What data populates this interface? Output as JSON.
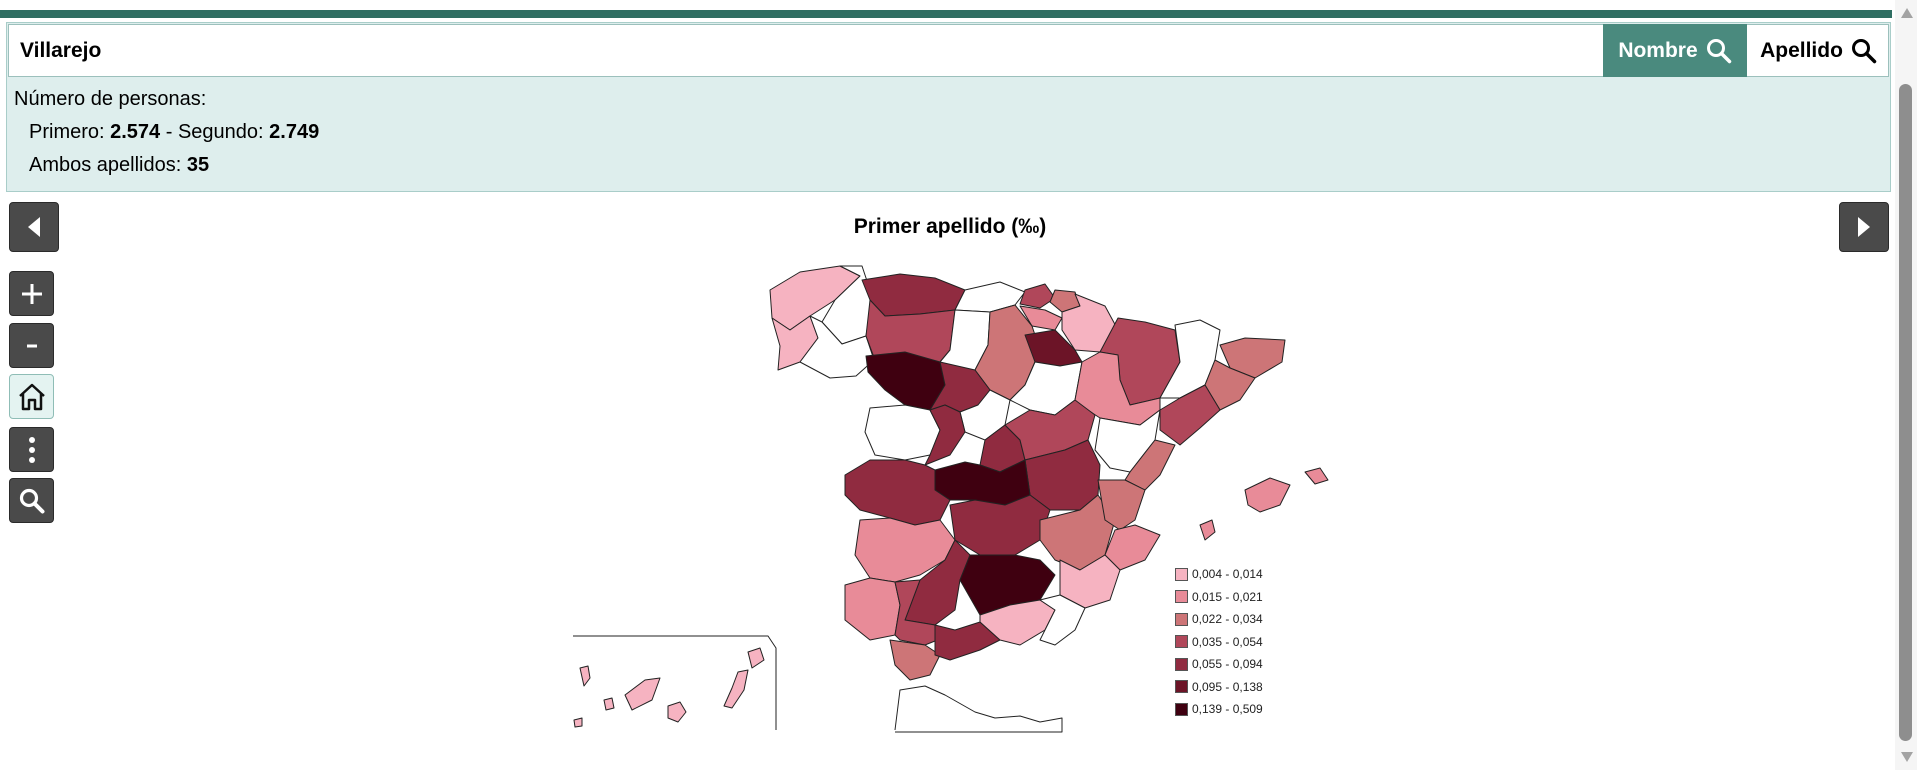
{
  "search": {
    "value": "Villarejo",
    "nombre_label": "Nombre",
    "apellido_label": "Apellido"
  },
  "stats": {
    "header": "Número de personas:",
    "primero_label": "Primero: ",
    "primero_value": "2.574",
    "separator": " - Segundo: ",
    "segundo_value": "2.749",
    "ambos_label": "Ambos apellidos: ",
    "ambos_value": "35"
  },
  "map": {
    "title": "Primer apellido (‰)",
    "legend": [
      {
        "label": "0,004 - 0,014",
        "color": "#f6b3c1"
      },
      {
        "label": "0,015 - 0,021",
        "color": "#e88b98"
      },
      {
        "label": "0,022 - 0,034",
        "color": "#cd7577"
      },
      {
        "label": "0,035 - 0,054",
        "color": "#b0475a"
      },
      {
        "label": "0,055 - 0,094",
        "color": "#902b40"
      },
      {
        "label": "0,095 - 0,138",
        "color": "#6c1427"
      },
      {
        "label": "0,139 - 0,509",
        "color": "#3f0010"
      }
    ]
  },
  "icons": {
    "prev": "triangle-left-icon",
    "next": "triangle-right-icon",
    "zoom_in": "plus-icon",
    "zoom_out": "minus-icon",
    "home": "home-icon",
    "menu": "vertical-dots-icon",
    "search": "magnifier-icon"
  }
}
